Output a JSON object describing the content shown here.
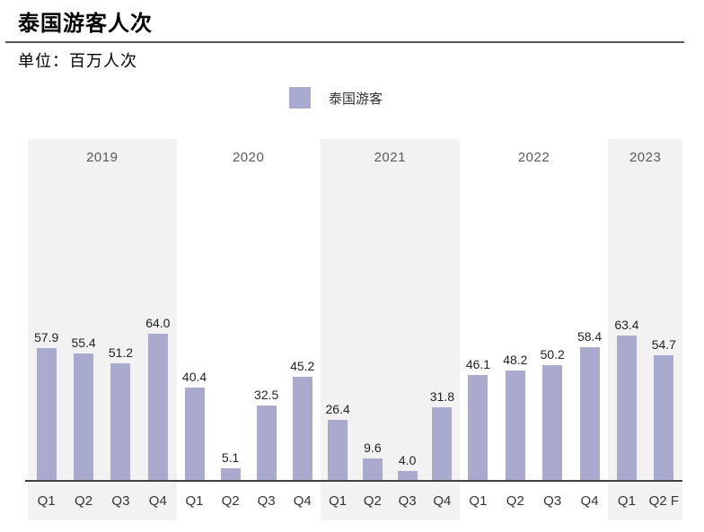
{
  "page": {
    "title": "泰国游客人次",
    "unit_label": "单位：百万人次"
  },
  "legend": {
    "label": "泰国游客"
  },
  "colors": {
    "bar": "#AAA9CE",
    "band": "#F2F2F2",
    "axis": "#404040",
    "rule": "#595959",
    "year_label": "#595959",
    "quarter_label": "#333333",
    "value_label": "#1F1F1F"
  },
  "chart_data": {
    "type": "bar",
    "title": "泰国游客人次",
    "unit": "百万人次",
    "xlabel": "",
    "ylabel": "",
    "ylim": [
      0,
      70
    ],
    "grid": false,
    "legend_position": "top-center",
    "legend_entries": [
      "泰国游客"
    ],
    "value_labels": true,
    "value_label_format": "one-decimal",
    "groups": [
      {
        "year": "2019",
        "shaded": true,
        "quarters": [
          "Q1",
          "Q2",
          "Q3",
          "Q4"
        ],
        "values": [
          57.9,
          55.4,
          51.2,
          64.0
        ]
      },
      {
        "year": "2020",
        "shaded": false,
        "quarters": [
          "Q1",
          "Q2",
          "Q3",
          "Q4"
        ],
        "values": [
          40.4,
          5.1,
          32.5,
          45.2
        ]
      },
      {
        "year": "2021",
        "shaded": true,
        "quarters": [
          "Q1",
          "Q2",
          "Q3",
          "Q4"
        ],
        "values": [
          26.4,
          9.6,
          4.0,
          31.8
        ]
      },
      {
        "year": "2022",
        "shaded": false,
        "quarters": [
          "Q1",
          "Q2",
          "Q3",
          "Q4"
        ],
        "values": [
          46.1,
          48.2,
          50.2,
          58.4
        ]
      },
      {
        "year": "2023",
        "shaded": true,
        "quarters": [
          "Q1",
          "Q2 F"
        ],
        "values": [
          63.4,
          54.7
        ]
      }
    ]
  }
}
